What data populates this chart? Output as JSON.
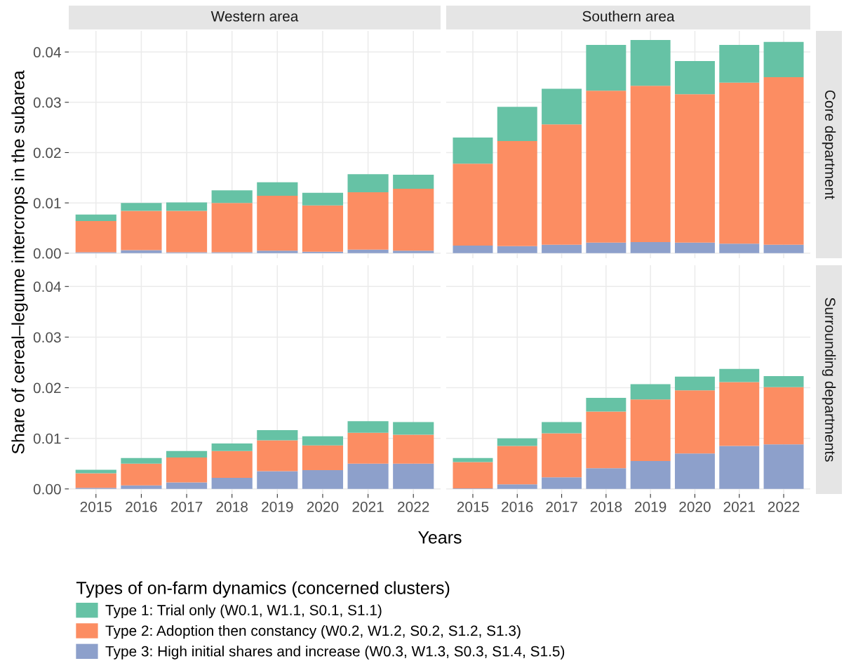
{
  "chart_data": [
    {
      "type": "bar",
      "stacked": true,
      "title": "Western area",
      "ylabel": "Share of cereal–legume intercrops in the subarea",
      "legend_title": "Types of on-farm dynamics (concerned clusters)",
      "legend": "bottom",
      "grid": true,
      "tick_labels": "y",
      "categories": [
        "2015",
        "2016",
        "2017",
        "2018",
        "2019",
        "2020",
        "2021",
        "2022"
      ],
      "ylim": [
        -0.001,
        0.0442
      ],
      "yticks": [
        {
          "value": 0,
          "label": "0.00"
        },
        {
          "value": 0.01,
          "label": "0.01"
        },
        {
          "value": 0.02,
          "label": "0.02"
        },
        {
          "value": 0.03,
          "label": "0.03"
        },
        {
          "value": 0.04,
          "label": "0.04"
        }
      ],
      "series": [
        {
          "name": "Type 3: High initial shares and increase (W0.3, W1.3, S0.3, S1.4, S1.5)",
          "color": "#8da0cb",
          "values": [
            0.0002,
            0.0006,
            0.0002,
            0.0002,
            0.0005,
            0.0003,
            0.0007,
            0.0005
          ]
        },
        {
          "name": "Type 2: Adoption then constancy (W0.2, W1.2, S0.2, S1.2, S1.3)",
          "color": "#fc8d62",
          "values": [
            0.0062,
            0.0078,
            0.0082,
            0.0098,
            0.0109,
            0.0092,
            0.0114,
            0.0123
          ]
        },
        {
          "name": "Type 1: Trial only (W0.1, W1.1, S0.1, S1.1)",
          "color": "#66c2a5",
          "values": [
            0.0013,
            0.0016,
            0.0017,
            0.0025,
            0.0027,
            0.0025,
            0.0036,
            0.0028
          ]
        }
      ]
    },
    {
      "type": "bar",
      "stacked": true,
      "title": "Southern area",
      "annotations": [
        "Core department"
      ],
      "grid": true,
      "tick_labels": false,
      "categories": [
        "2015",
        "2016",
        "2017",
        "2018",
        "2019",
        "2020",
        "2021",
        "2022"
      ],
      "ylim": [
        -0.001,
        0.0442
      ],
      "yticks": [
        0,
        0.01,
        0.02,
        0.03,
        0.04
      ],
      "series": [
        {
          "color": "#8da0cb",
          "values": [
            0.0015,
            0.0014,
            0.0017,
            0.0021,
            0.0022,
            0.0021,
            0.0019,
            0.0017
          ]
        },
        {
          "color": "#fc8d62",
          "values": [
            0.0163,
            0.0209,
            0.0239,
            0.0302,
            0.0311,
            0.0295,
            0.032,
            0.0333
          ]
        },
        {
          "color": "#66c2a5",
          "values": [
            0.0052,
            0.0068,
            0.0071,
            0.0091,
            0.0091,
            0.0066,
            0.0075,
            0.007
          ]
        }
      ]
    },
    {
      "type": "bar",
      "stacked": true,
      "xlabel": "Years",
      "grid": true,
      "categories": [
        "2015",
        "2016",
        "2017",
        "2018",
        "2019",
        "2020",
        "2021",
        "2022"
      ],
      "ylim": [
        -0.001,
        0.0442
      ],
      "yticks": [
        {
          "value": 0,
          "label": "0.00"
        },
        {
          "value": 0.01,
          "label": "0.01"
        },
        {
          "value": 0.02,
          "label": "0.02"
        },
        {
          "value": 0.03,
          "label": "0.03"
        },
        {
          "value": 0.04,
          "label": "0.04"
        }
      ],
      "series": [
        {
          "color": "#8da0cb",
          "values": [
            0.0002,
            0.0007,
            0.0013,
            0.0022,
            0.0035,
            0.0037,
            0.005,
            0.005
          ]
        },
        {
          "color": "#fc8d62",
          "values": [
            0.0029,
            0.0043,
            0.0049,
            0.0053,
            0.0061,
            0.0049,
            0.0061,
            0.0057
          ]
        },
        {
          "color": "#66c2a5",
          "values": [
            0.0007,
            0.0011,
            0.0013,
            0.0015,
            0.002,
            0.0018,
            0.0023,
            0.0025
          ]
        }
      ]
    },
    {
      "type": "bar",
      "stacked": true,
      "annotations": [
        "Surrounding departments"
      ],
      "grid": true,
      "tick_labels": "x",
      "categories": [
        "2015",
        "2016",
        "2017",
        "2018",
        "2019",
        "2020",
        "2021",
        "2022"
      ],
      "ylim": [
        -0.001,
        0.0442
      ],
      "yticks": [
        0,
        0.01,
        0.02,
        0.03,
        0.04
      ],
      "series": [
        {
          "color": "#8da0cb",
          "values": [
            0.0001,
            0.0009,
            0.0023,
            0.0041,
            0.0055,
            0.007,
            0.0085,
            0.0088
          ]
        },
        {
          "color": "#fc8d62",
          "values": [
            0.0052,
            0.0076,
            0.0087,
            0.0112,
            0.0122,
            0.0125,
            0.0126,
            0.0113
          ]
        },
        {
          "color": "#66c2a5",
          "values": [
            0.0008,
            0.0015,
            0.0022,
            0.0027,
            0.003,
            0.0027,
            0.0026,
            0.0022
          ]
        }
      ]
    }
  ]
}
